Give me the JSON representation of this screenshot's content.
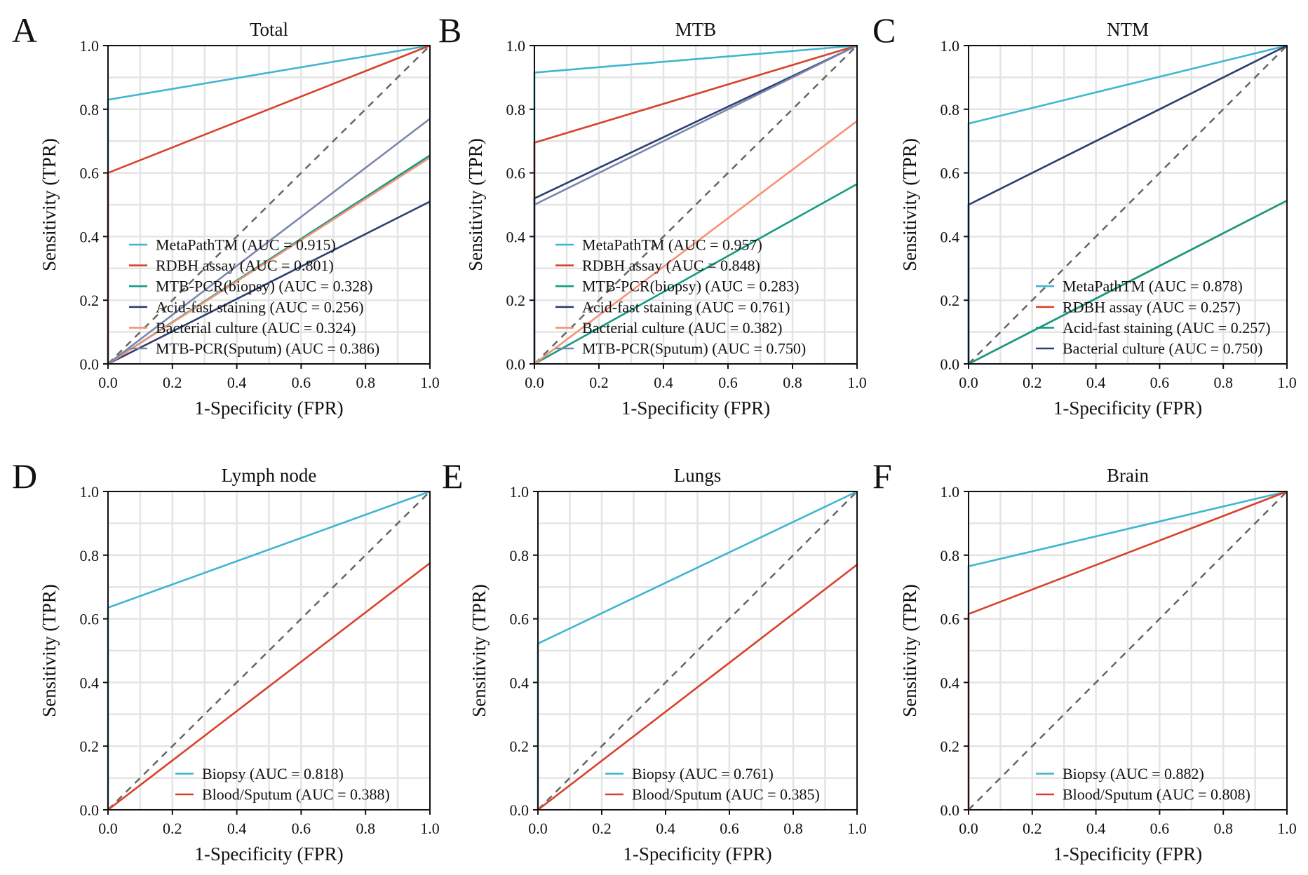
{
  "figure": {
    "colors": {
      "cyan": "#3FB6CF",
      "red": "#D9412B",
      "green": "#139C81",
      "navy": "#2E3E73",
      "salmon": "#F29478",
      "slate": "#7A87AD",
      "reference": "#666666",
      "grid": "#E4E4E4"
    }
  },
  "chart_data": [
    {
      "panel": "A",
      "title": "Total",
      "type": "line",
      "xlabel": "1-Specificity (FPR)",
      "ylabel": "Sensitivity (TPR)",
      "xlim": [
        0,
        1
      ],
      "ylim": [
        0,
        1
      ],
      "ticks": [
        "0.0",
        "0.2",
        "0.4",
        "0.6",
        "0.8",
        "1.0"
      ],
      "grid": true,
      "legend_position": "bottom-left",
      "series": [
        {
          "name": "MetaPathTM (AUC = 0.915)",
          "color": "#3FB6CF",
          "x": [
            0,
            0,
            1
          ],
          "y": [
            0,
            0.83,
            1
          ]
        },
        {
          "name": "RDBH assay (AUC = 0.801)",
          "color": "#D9412B",
          "x": [
            0,
            0,
            1
          ],
          "y": [
            0,
            0.6,
            1
          ]
        },
        {
          "name": "MTB-PCR(biopsy) (AUC = 0.328)",
          "color": "#139C81",
          "x": [
            0,
            1
          ],
          "y": [
            0,
            0.655
          ]
        },
        {
          "name": "Acid-fast staining (AUC = 0.256)",
          "color": "#2E3E73",
          "x": [
            0,
            1
          ],
          "y": [
            0,
            0.51
          ]
        },
        {
          "name": "Bacterial culture (AUC = 0.324)",
          "color": "#F29478",
          "x": [
            0,
            1
          ],
          "y": [
            0,
            0.648
          ]
        },
        {
          "name": "MTB-PCR(Sputum) (AUC = 0.386)",
          "color": "#7A87AD",
          "x": [
            0,
            1
          ],
          "y": [
            0,
            0.77
          ]
        }
      ]
    },
    {
      "panel": "B",
      "title": "MTB",
      "type": "line",
      "xlabel": "1-Specificity (FPR)",
      "ylabel": "Sensitivity (TPR)",
      "xlim": [
        0,
        1
      ],
      "ylim": [
        0,
        1
      ],
      "ticks": [
        "0.0",
        "0.2",
        "0.4",
        "0.6",
        "0.8",
        "1.0"
      ],
      "grid": true,
      "legend_position": "bottom-left",
      "series": [
        {
          "name": "MetaPathTM (AUC = 0.957)",
          "color": "#3FB6CF",
          "x": [
            0,
            0,
            1
          ],
          "y": [
            0,
            0.915,
            1
          ]
        },
        {
          "name": "RDBH assay (AUC = 0.848)",
          "color": "#D9412B",
          "x": [
            0,
            0,
            1
          ],
          "y": [
            0,
            0.695,
            1
          ]
        },
        {
          "name": "MTB-PCR(biopsy) (AUC = 0.283)",
          "color": "#139C81",
          "x": [
            0,
            1
          ],
          "y": [
            0,
            0.565
          ]
        },
        {
          "name": "Acid-fast staining (AUC = 0.761)",
          "color": "#2E3E73",
          "x": [
            0,
            0,
            1
          ],
          "y": [
            0,
            0.52,
            1
          ]
        },
        {
          "name": "Bacterial culture (AUC = 0.382)",
          "color": "#F29478",
          "x": [
            0,
            1
          ],
          "y": [
            0,
            0.763
          ]
        },
        {
          "name": "MTB-PCR(Sputum) (AUC = 0.750)",
          "color": "#7A87AD",
          "x": [
            0,
            0,
            1
          ],
          "y": [
            0,
            0.5,
            1
          ]
        }
      ]
    },
    {
      "panel": "C",
      "title": "NTM",
      "type": "line",
      "xlabel": "1-Specificity (FPR)",
      "ylabel": "Sensitivity (TPR)",
      "xlim": [
        0,
        1
      ],
      "ylim": [
        0,
        1
      ],
      "ticks": [
        "0.0",
        "0.2",
        "0.4",
        "0.6",
        "0.8",
        "1.0"
      ],
      "grid": true,
      "legend_position": "bottom-right",
      "series": [
        {
          "name": "MetaPathTM (AUC = 0.878)",
          "color": "#3FB6CF",
          "x": [
            0,
            0,
            1
          ],
          "y": [
            0,
            0.755,
            1
          ]
        },
        {
          "name": "RDBH assay (AUC = 0.257)",
          "color": "#D9412B",
          "x": [
            0,
            1
          ],
          "y": [
            0,
            0.513
          ]
        },
        {
          "name": "Acid-fast staining (AUC = 0.257)",
          "color": "#139C81",
          "x": [
            0,
            1
          ],
          "y": [
            0,
            0.513
          ]
        },
        {
          "name": "Bacterial culture (AUC = 0.750)",
          "color": "#2E3E73",
          "x": [
            0,
            0,
            1
          ],
          "y": [
            0,
            0.5,
            1
          ]
        }
      ]
    },
    {
      "panel": "D",
      "title": "Lymph node",
      "type": "line",
      "xlabel": "1-Specificity (FPR)",
      "ylabel": "Sensitivity (TPR)",
      "xlim": [
        0,
        1
      ],
      "ylim": [
        0,
        1
      ],
      "ticks": [
        "0.0",
        "0.2",
        "0.4",
        "0.6",
        "0.8",
        "1.0"
      ],
      "grid": true,
      "legend_position": "bottom-right",
      "series": [
        {
          "name": "Biopsy (AUC = 0.818)",
          "color": "#3FB6CF",
          "x": [
            0,
            0,
            1
          ],
          "y": [
            0,
            0.635,
            1
          ]
        },
        {
          "name": "Blood/Sputum (AUC = 0.388)",
          "color": "#D9412B",
          "x": [
            0,
            1
          ],
          "y": [
            0,
            0.775
          ]
        }
      ]
    },
    {
      "panel": "E",
      "title": "Lungs",
      "type": "line",
      "xlabel": "1-Specificity (FPR)",
      "ylabel": "Sensitivity (TPR)",
      "xlim": [
        0,
        1
      ],
      "ylim": [
        0,
        1
      ],
      "ticks": [
        "0.0",
        "0.2",
        "0.4",
        "0.6",
        "0.8",
        "1.0"
      ],
      "grid": true,
      "legend_position": "bottom-right",
      "series": [
        {
          "name": "Biopsy (AUC = 0.761)",
          "color": "#3FB6CF",
          "x": [
            0,
            0,
            1
          ],
          "y": [
            0,
            0.522,
            1
          ]
        },
        {
          "name": "Blood/Sputum (AUC = 0.385)",
          "color": "#D9412B",
          "x": [
            0,
            1
          ],
          "y": [
            0,
            0.77
          ]
        }
      ]
    },
    {
      "panel": "F",
      "title": "Brain",
      "type": "line",
      "xlabel": "1-Specificity (FPR)",
      "ylabel": "Sensitivity (TPR)",
      "xlim": [
        0,
        1
      ],
      "ylim": [
        0,
        1
      ],
      "ticks": [
        "0.0",
        "0.2",
        "0.4",
        "0.6",
        "0.8",
        "1.0"
      ],
      "grid": true,
      "legend_position": "bottom-right",
      "series": [
        {
          "name": "Biopsy (AUC = 0.882)",
          "color": "#3FB6CF",
          "x": [
            0,
            0,
            1
          ],
          "y": [
            0,
            0.765,
            1
          ]
        },
        {
          "name": "Blood/Sputum (AUC = 0.808)",
          "color": "#D9412B",
          "x": [
            0,
            0,
            1
          ],
          "y": [
            0,
            0.615,
            1
          ]
        }
      ]
    }
  ]
}
